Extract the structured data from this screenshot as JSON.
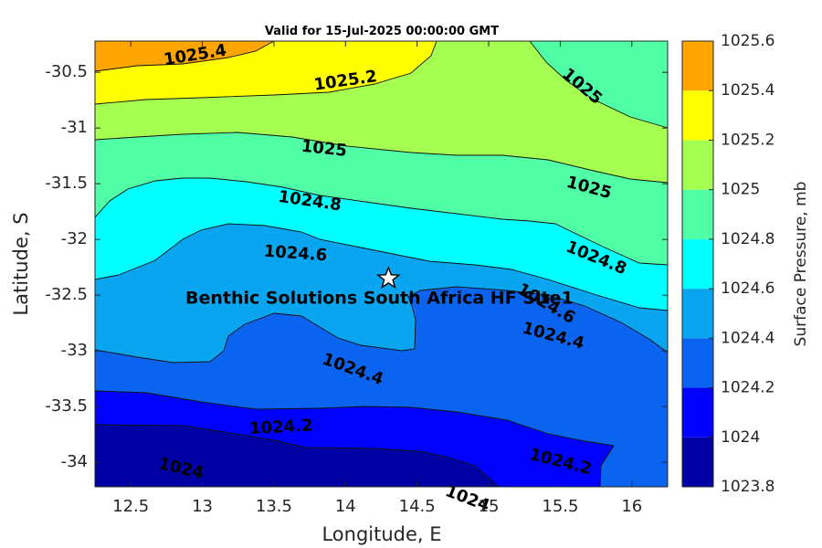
{
  "chart_data": {
    "type": "contour",
    "title": "Valid for 15-Jul-2025 00:00:00 GMT",
    "xlabel": "Longitude, E",
    "ylabel": "Latitude, S",
    "xlim": [
      12.25,
      16.25
    ],
    "ylim": [
      -34.22,
      -30.22
    ],
    "x_ticks": [
      "12.5",
      "13",
      "13.5",
      "14",
      "14.5",
      "15",
      "15.5",
      "16"
    ],
    "y_ticks": [
      "-30.5",
      "-31",
      "-31.5",
      "-32",
      "-32.5",
      "-33",
      "-33.5",
      "-34"
    ],
    "colorbar": {
      "label": "Surface Pressure, mb",
      "levels": [
        1023.8,
        1024,
        1024.2,
        1024.4,
        1024.6,
        1024.8,
        1025,
        1025.2,
        1025.4,
        1025.6
      ],
      "tick_labels": [
        "1023.8",
        "1024",
        "1024.2",
        "1024.4",
        "1024.6",
        "1024.8",
        "1025",
        "1025.2",
        "1025.4",
        "1025.6"
      ],
      "colors": [
        "#0000a4",
        "#0000ff",
        "#0a64f0",
        "#0aa5f0",
        "#00ffff",
        "#50ffa5",
        "#a5ff50",
        "#ffff00",
        "#ffa500",
        "#ff5000"
      ]
    },
    "contour_labels": [
      {
        "text": "1025.4",
        "lon": 12.95,
        "lat": -30.35,
        "angle": -9
      },
      {
        "text": "1025.2",
        "lon": 14.0,
        "lat": -30.58,
        "angle": -8
      },
      {
        "text": "1025",
        "lon": 15.65,
        "lat": -30.63,
        "angle": 40
      },
      {
        "text": "1025",
        "lon": 13.85,
        "lat": -31.19,
        "angle": 6
      },
      {
        "text": "1025",
        "lon": 15.7,
        "lat": -31.54,
        "angle": 15
      },
      {
        "text": "1024.8",
        "lon": 13.75,
        "lat": -31.66,
        "angle": 8
      },
      {
        "text": "1024.8",
        "lon": 15.75,
        "lat": -32.17,
        "angle": 22
      },
      {
        "text": "1024.6",
        "lon": 13.65,
        "lat": -32.13,
        "angle": 4
      },
      {
        "text": "1024.6",
        "lon": 15.4,
        "lat": -32.58,
        "angle": 30
      },
      {
        "text": "1024.4",
        "lon": 15.45,
        "lat": -32.87,
        "angle": 15
      },
      {
        "text": "1024.4",
        "lon": 14.05,
        "lat": -33.17,
        "angle": 20
      },
      {
        "text": "1024.2",
        "lon": 13.55,
        "lat": -33.69,
        "angle": -3
      },
      {
        "text": "1024.2",
        "lon": 15.5,
        "lat": -34.0,
        "angle": 14
      },
      {
        "text": "1024",
        "lon": 12.85,
        "lat": -34.06,
        "angle": 13
      },
      {
        "text": "1024",
        "lon": 14.85,
        "lat": -34.33,
        "angle": 21
      }
    ],
    "site": {
      "label": "Benthic Solutions South Africa HF Site1",
      "lon": 14.3,
      "lat": -32.35
    }
  }
}
